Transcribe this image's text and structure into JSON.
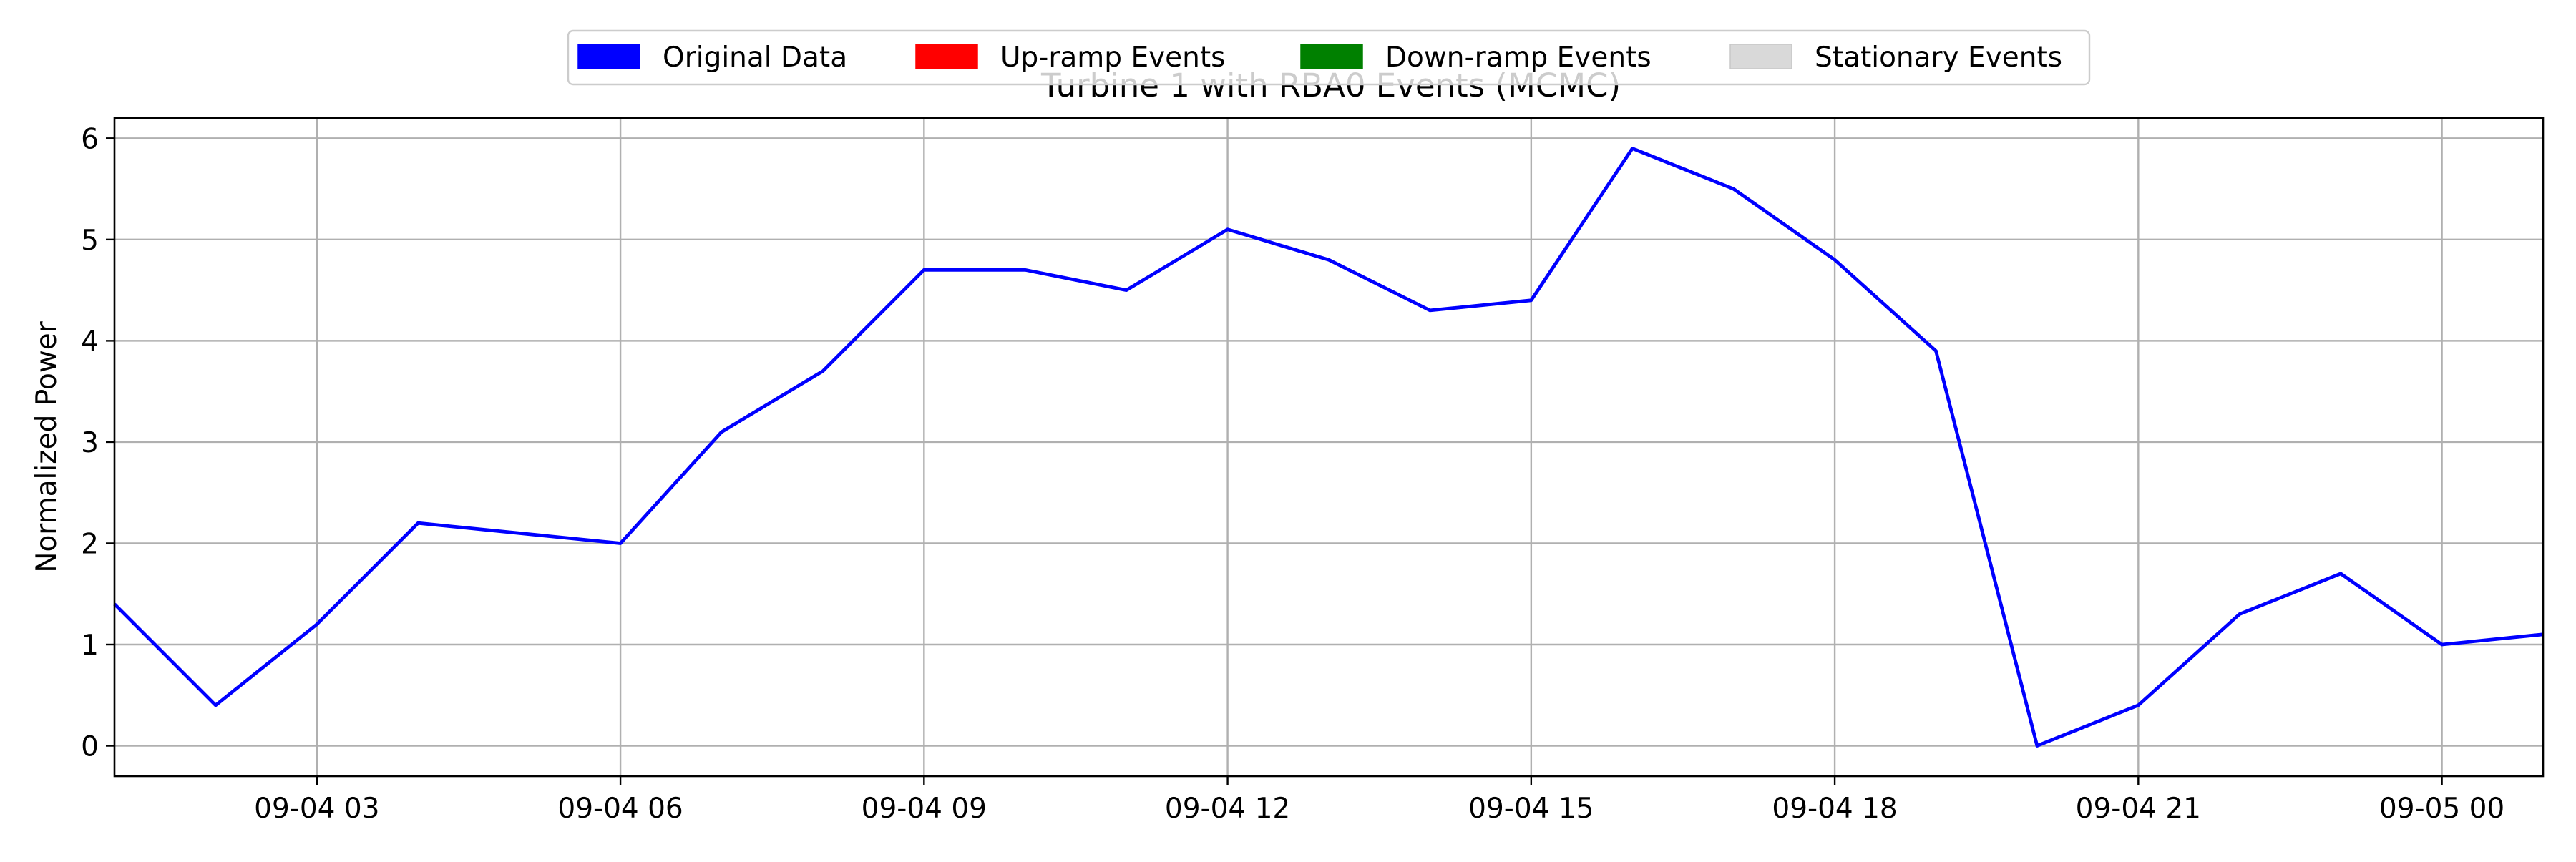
{
  "chart_data": {
    "type": "line",
    "title": "Turbine 1 with RBA0 Events (MCMC)",
    "xlabel": "",
    "ylabel": "Normalized Power",
    "xlim": [
      "2024-09-04 01:00",
      "2024-09-05 01:00"
    ],
    "ylim": [
      -0.3,
      6.2
    ],
    "grid": true,
    "legend_position": "top-center",
    "x_ticks": [
      {
        "at": "2024-09-04 03:00",
        "label": "09-04 03"
      },
      {
        "at": "2024-09-04 06:00",
        "label": "09-04 06"
      },
      {
        "at": "2024-09-04 09:00",
        "label": "09-04 09"
      },
      {
        "at": "2024-09-04 12:00",
        "label": "09-04 12"
      },
      {
        "at": "2024-09-04 15:00",
        "label": "09-04 15"
      },
      {
        "at": "2024-09-04 18:00",
        "label": "09-04 18"
      },
      {
        "at": "2024-09-04 21:00",
        "label": "09-04 21"
      },
      {
        "at": "2024-09-05 00:00",
        "label": "09-05 00"
      }
    ],
    "y_ticks": [
      0,
      1,
      2,
      3,
      4,
      5,
      6
    ],
    "legend": [
      {
        "label": "Original Data",
        "color": "#0000ff"
      },
      {
        "label": "Up-ramp Events",
        "color": "#ff0000"
      },
      {
        "label": "Down-ramp Events",
        "color": "#008000"
      },
      {
        "label": "Stationary Events",
        "color": "#d9d9d9"
      }
    ],
    "series": [
      {
        "name": "Original Data",
        "color": "#0000ff",
        "points": [
          {
            "x": "2024-09-04 01:00",
            "y": 1.4
          },
          {
            "x": "2024-09-04 02:00",
            "y": 0.4
          },
          {
            "x": "2024-09-04 03:00",
            "y": 1.2
          },
          {
            "x": "2024-09-04 04:00",
            "y": 2.2
          },
          {
            "x": "2024-09-04 06:00",
            "y": 2.0
          },
          {
            "x": "2024-09-04 07:00",
            "y": 3.1
          },
          {
            "x": "2024-09-04 08:00",
            "y": 3.7
          },
          {
            "x": "2024-09-04 09:00",
            "y": 4.7
          },
          {
            "x": "2024-09-04 10:00",
            "y": 4.7
          },
          {
            "x": "2024-09-04 11:00",
            "y": 4.5
          },
          {
            "x": "2024-09-04 12:00",
            "y": 5.1
          },
          {
            "x": "2024-09-04 13:00",
            "y": 4.8
          },
          {
            "x": "2024-09-04 14:00",
            "y": 4.3
          },
          {
            "x": "2024-09-04 15:00",
            "y": 4.4
          },
          {
            "x": "2024-09-04 16:00",
            "y": 5.9
          },
          {
            "x": "2024-09-04 17:00",
            "y": 5.5
          },
          {
            "x": "2024-09-04 18:00",
            "y": 4.8
          },
          {
            "x": "2024-09-04 19:00",
            "y": 3.9
          },
          {
            "x": "2024-09-04 20:00",
            "y": 0.0
          },
          {
            "x": "2024-09-04 21:00",
            "y": 0.4
          },
          {
            "x": "2024-09-04 22:00",
            "y": 1.3
          },
          {
            "x": "2024-09-04 23:00",
            "y": 1.7
          },
          {
            "x": "2024-09-05 00:00",
            "y": 1.0
          },
          {
            "x": "2024-09-05 01:00",
            "y": 1.1
          }
        ]
      }
    ]
  }
}
